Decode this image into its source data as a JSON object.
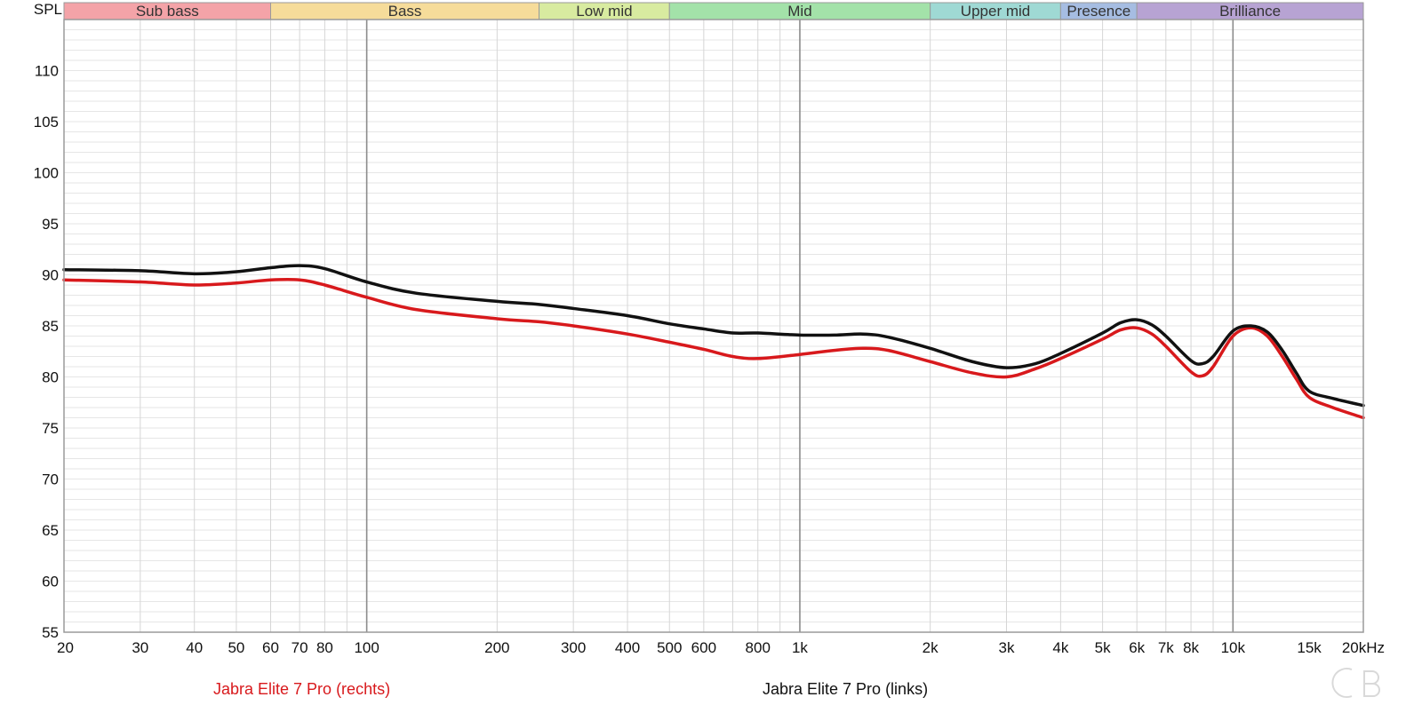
{
  "chart_data": {
    "type": "line",
    "x_scale": "log",
    "xlim": [
      20,
      20000
    ],
    "ylim": [
      55,
      115
    ],
    "ylabel": "SPL",
    "grid": true,
    "y_ticks": [
      {
        "v": 55,
        "label": "55"
      },
      {
        "v": 60,
        "label": "60"
      },
      {
        "v": 65,
        "label": "65"
      },
      {
        "v": 70,
        "label": "70"
      },
      {
        "v": 75,
        "label": "75"
      },
      {
        "v": 80,
        "label": "80"
      },
      {
        "v": 85,
        "label": "85"
      },
      {
        "v": 90,
        "label": "90"
      },
      {
        "v": 95,
        "label": "95"
      },
      {
        "v": 100,
        "label": "100"
      },
      {
        "v": 105,
        "label": "105"
      },
      {
        "v": 110,
        "label": "110"
      }
    ],
    "x_ticks": [
      {
        "v": 20,
        "label": "20"
      },
      {
        "v": 30,
        "label": "30"
      },
      {
        "v": 40,
        "label": "40"
      },
      {
        "v": 50,
        "label": "50"
      },
      {
        "v": 60,
        "label": "60"
      },
      {
        "v": 70,
        "label": "70"
      },
      {
        "v": 80,
        "label": "80"
      },
      {
        "v": 100,
        "label": "100"
      },
      {
        "v": 200,
        "label": "200"
      },
      {
        "v": 300,
        "label": "300"
      },
      {
        "v": 400,
        "label": "400"
      },
      {
        "v": 500,
        "label": "500"
      },
      {
        "v": 600,
        "label": "600"
      },
      {
        "v": 800,
        "label": "800"
      },
      {
        "v": 1000,
        "label": "1k"
      },
      {
        "v": 2000,
        "label": "2k"
      },
      {
        "v": 3000,
        "label": "3k"
      },
      {
        "v": 4000,
        "label": "4k"
      },
      {
        "v": 5000,
        "label": "5k"
      },
      {
        "v": 6000,
        "label": "6k"
      },
      {
        "v": 7000,
        "label": "7k"
      },
      {
        "v": 8000,
        "label": "8k"
      },
      {
        "v": 10000,
        "label": "10k"
      },
      {
        "v": 15000,
        "label": "15k"
      },
      {
        "v": 20000,
        "label": "20kHz"
      }
    ],
    "bands": [
      {
        "name": "Sub bass",
        "from": 20,
        "to": 60,
        "color": "#f4a3a8"
      },
      {
        "name": "Bass",
        "from": 60,
        "to": 250,
        "color": "#f6dc9a"
      },
      {
        "name": "Low mid",
        "from": 250,
        "to": 500,
        "color": "#d8eba0"
      },
      {
        "name": "Mid",
        "from": 500,
        "to": 2000,
        "color": "#a3e2a9"
      },
      {
        "name": "Upper mid",
        "from": 2000,
        "to": 4000,
        "color": "#9fd9d4"
      },
      {
        "name": "Presence",
        "from": 4000,
        "to": 6000,
        "color": "#a6bde2"
      },
      {
        "name": "Brilliance",
        "from": 6000,
        "to": 20000,
        "color": "#b7a3d3"
      }
    ],
    "series": [
      {
        "name": "Jabra Elite 7 Pro (rechts)",
        "color": "#d8191c",
        "points": [
          [
            20,
            89.5
          ],
          [
            30,
            89.3
          ],
          [
            40,
            89.0
          ],
          [
            50,
            89.2
          ],
          [
            60,
            89.5
          ],
          [
            70,
            89.5
          ],
          [
            80,
            89.0
          ],
          [
            100,
            87.8
          ],
          [
            130,
            86.6
          ],
          [
            200,
            85.7
          ],
          [
            250,
            85.4
          ],
          [
            300,
            85.0
          ],
          [
            400,
            84.2
          ],
          [
            500,
            83.4
          ],
          [
            600,
            82.7
          ],
          [
            700,
            82.0
          ],
          [
            800,
            81.8
          ],
          [
            1000,
            82.2
          ],
          [
            1200,
            82.6
          ],
          [
            1400,
            82.8
          ],
          [
            1600,
            82.6
          ],
          [
            2000,
            81.5
          ],
          [
            2500,
            80.4
          ],
          [
            3000,
            80.0
          ],
          [
            3500,
            80.8
          ],
          [
            4000,
            81.8
          ],
          [
            5000,
            83.7
          ],
          [
            5500,
            84.6
          ],
          [
            6000,
            84.8
          ],
          [
            6500,
            84.2
          ],
          [
            7000,
            83.0
          ],
          [
            8000,
            80.5
          ],
          [
            8500,
            80.1
          ],
          [
            9000,
            81.0
          ],
          [
            10000,
            84.0
          ],
          [
            11000,
            84.8
          ],
          [
            12000,
            84.0
          ],
          [
            13000,
            82.0
          ],
          [
            14000,
            79.8
          ],
          [
            15000,
            78.0
          ],
          [
            17000,
            77.0
          ],
          [
            20000,
            76.0
          ]
        ]
      },
      {
        "name": "Jabra Elite 7 Pro (links)",
        "color": "#111111",
        "points": [
          [
            20,
            90.5
          ],
          [
            30,
            90.4
          ],
          [
            40,
            90.1
          ],
          [
            50,
            90.3
          ],
          [
            60,
            90.7
          ],
          [
            70,
            90.9
          ],
          [
            80,
            90.6
          ],
          [
            100,
            89.3
          ],
          [
            130,
            88.2
          ],
          [
            200,
            87.4
          ],
          [
            250,
            87.1
          ],
          [
            300,
            86.7
          ],
          [
            400,
            86.0
          ],
          [
            500,
            85.2
          ],
          [
            600,
            84.7
          ],
          [
            700,
            84.3
          ],
          [
            800,
            84.3
          ],
          [
            1000,
            84.1
          ],
          [
            1200,
            84.1
          ],
          [
            1400,
            84.2
          ],
          [
            1600,
            83.9
          ],
          [
            2000,
            82.8
          ],
          [
            2500,
            81.5
          ],
          [
            3000,
            80.9
          ],
          [
            3500,
            81.3
          ],
          [
            4000,
            82.3
          ],
          [
            5000,
            84.3
          ],
          [
            5500,
            85.3
          ],
          [
            6000,
            85.6
          ],
          [
            6500,
            85.1
          ],
          [
            7000,
            84.0
          ],
          [
            8000,
            81.6
          ],
          [
            8500,
            81.3
          ],
          [
            9000,
            82.0
          ],
          [
            10000,
            84.5
          ],
          [
            11000,
            85.0
          ],
          [
            12000,
            84.4
          ],
          [
            13000,
            82.6
          ],
          [
            14000,
            80.4
          ],
          [
            15000,
            78.6
          ],
          [
            17000,
            77.9
          ],
          [
            20000,
            77.2
          ]
        ]
      }
    ]
  }
}
